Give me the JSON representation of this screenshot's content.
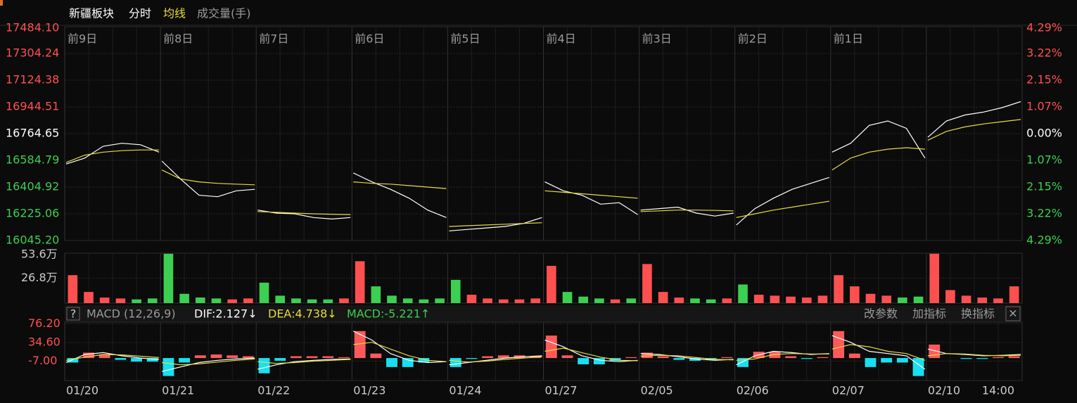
{
  "chart_data": [
    {
      "type": "line",
      "title": "新疆板块",
      "categories": [
        "01/20",
        "01/21",
        "01/22",
        "01/23",
        "01/24",
        "01/27",
        "02/05",
        "02/06",
        "02/07",
        "02/10"
      ],
      "session_labels": [
        "前9日",
        "前8日",
        "前7日",
        "前6日",
        "前5日",
        "前4日",
        "前3日",
        "前2日",
        "前1日",
        null
      ],
      "time_label": "14:00",
      "series": [
        {
          "name": "分时",
          "color": "#ffffff",
          "values": [
            [
              16560,
              16600,
              16680,
              16700,
              16690,
              16640
            ],
            [
              16580,
              16460,
              16350,
              16340,
              16380,
              16390
            ],
            [
              16250,
              16230,
              16225,
              16200,
              16190,
              16200
            ],
            [
              16500,
              16440,
              16390,
              16330,
              16250,
              16200
            ],
            [
              16110,
              16120,
              16130,
              16140,
              16160,
              16200
            ],
            [
              16440,
              16380,
              16350,
              16290,
              16300,
              16220
            ],
            [
              16250,
              16260,
              16270,
              16230,
              16210,
              16230
            ],
            [
              16150,
              16260,
              16330,
              16390,
              16430,
              16470
            ],
            [
              16640,
              16700,
              16820,
              16850,
              16800,
              16600
            ],
            [
              16740,
              16850,
              16890,
              16910,
              16940,
              16980
            ]
          ]
        },
        {
          "name": "均线",
          "color": "#e6dc3c",
          "values": [
            [
              16570,
              16620,
              16640,
              16650,
              16655,
              16655
            ],
            [
              16520,
              16460,
              16440,
              16430,
              16425,
              16420
            ],
            [
              16240,
              16235,
              16230,
              16225,
              16222,
              16220
            ],
            [
              16440,
              16430,
              16425,
              16415,
              16405,
              16395
            ],
            [
              16140,
              16145,
              16150,
              16155,
              16160,
              16165
            ],
            [
              16380,
              16370,
              16360,
              16350,
              16340,
              16330
            ],
            [
              16240,
              16245,
              16250,
              16250,
              16248,
              16245
            ],
            [
              16200,
              16225,
              16250,
              16270,
              16290,
              16310
            ],
            [
              16520,
              16600,
              16640,
              16660,
              16670,
              16660
            ],
            [
              16720,
              16780,
              16810,
              16830,
              16845,
              16860
            ]
          ]
        }
      ],
      "ylim": [
        16045.2,
        17484.1
      ],
      "yticks": [
        {
          "value": 17484.1,
          "label": "17484.10"
        },
        {
          "value": 17304.24,
          "label": "17304.24"
        },
        {
          "value": 17124.38,
          "label": "17124.38"
        },
        {
          "value": 16944.51,
          "label": "16944.51"
        },
        {
          "value": 16764.65,
          "label": "16764.65"
        },
        {
          "value": 16584.79,
          "label": "16584.79"
        },
        {
          "value": 16404.92,
          "label": "16404.92"
        },
        {
          "value": 16225.06,
          "label": "16225.06"
        },
        {
          "value": 16045.2,
          "label": "16045.20"
        }
      ],
      "y2lim": [
        -4.29,
        4.29
      ],
      "y2ticks": [
        {
          "value": 4.29,
          "label": "4.29%"
        },
        {
          "value": 3.22,
          "label": "3.22%"
        },
        {
          "value": 2.15,
          "label": "2.15%"
        },
        {
          "value": 1.07,
          "label": "1.07%"
        },
        {
          "value": 0,
          "label": "0.00%"
        },
        {
          "value": -1.07,
          "label": "1.07%"
        },
        {
          "value": -2.15,
          "label": "2.15%"
        },
        {
          "value": -3.22,
          "label": "3.22%"
        },
        {
          "value": -4.29,
          "label": "4.29%"
        }
      ],
      "up_color": "#ff5050",
      "down_color": "#3ccf50",
      "flat_color": "#ffffff",
      "grid": true
    },
    {
      "type": "bar",
      "title": "成交量(手)",
      "values": [
        [
          30,
          12,
          6,
          5,
          4,
          5
        ],
        [
          53,
          10,
          6,
          5,
          4,
          5
        ],
        [
          22,
          8,
          5,
          4,
          4,
          5
        ],
        [
          45,
          18,
          8,
          5,
          4,
          5
        ],
        [
          25,
          9,
          5,
          4,
          4,
          5
        ],
        [
          40,
          12,
          7,
          5,
          4,
          5
        ],
        [
          42,
          12,
          6,
          5,
          4,
          5
        ],
        [
          20,
          9,
          8,
          7,
          6,
          8
        ],
        [
          30,
          18,
          10,
          8,
          6,
          7
        ],
        [
          53,
          14,
          8,
          6,
          5,
          18
        ]
      ],
      "ylim": [
        0,
        53.6
      ],
      "yticks": [
        {
          "value": 53.6,
          "label": "53.6万"
        },
        {
          "value": 26.8,
          "label": "26.8万"
        }
      ],
      "up_color": "#ff5050",
      "down_color": "#3ccf50"
    },
    {
      "type": "macd",
      "title": "MACD (12,26,9)",
      "help": "?",
      "buttons": [
        "改参数",
        "加指标",
        "换指标"
      ],
      "close": "×",
      "series": [
        {
          "name": "DIF:2.127↓",
          "color": "#ffffff",
          "values": [
            [
              -10,
              8,
              12,
              5,
              0,
              -3
            ],
            [
              -30,
              -20,
              -10,
              -5,
              -2,
              0
            ],
            [
              -25,
              -15,
              -8,
              -5,
              -3,
              -2
            ],
            [
              60,
              40,
              10,
              -5,
              -10,
              -8
            ],
            [
              -15,
              -10,
              -5,
              0,
              3,
              5
            ],
            [
              40,
              25,
              5,
              -5,
              -8,
              -5
            ],
            [
              10,
              8,
              3,
              -2,
              -5,
              -3
            ],
            [
              -15,
              5,
              15,
              12,
              8,
              10
            ],
            [
              50,
              35,
              15,
              10,
              5,
              -25
            ],
            [
              20,
              10,
              8,
              5,
              6,
              8
            ]
          ]
        },
        {
          "name": "DEA:4.738↓",
          "color": "#e6dc3c",
          "values": [
            [
              -5,
              2,
              8,
              7,
              4,
              1
            ],
            [
              -10,
              -15,
              -13,
              -9,
              -5,
              -2
            ],
            [
              -8,
              -12,
              -10,
              -7,
              -5,
              -3
            ],
            [
              30,
              35,
              20,
              5,
              -5,
              -8
            ],
            [
              -5,
              -9,
              -7,
              -3,
              0,
              3
            ],
            [
              15,
              22,
              12,
              2,
              -5,
              -6
            ],
            [
              4,
              6,
              5,
              1,
              -3,
              -4
            ],
            [
              -5,
              -2,
              8,
              10,
              9,
              9
            ],
            [
              20,
              30,
              25,
              15,
              10,
              -5
            ],
            [
              5,
              10,
              9,
              6,
              5,
              6
            ]
          ]
        },
        {
          "name": "MACD:-5.221↑",
          "color": "#3ccf50",
          "up_color": "#ff5a5a",
          "down_color": "#18e0f0",
          "values": [
            [
              -10,
              12,
              8,
              -4,
              -8,
              -8
            ],
            [
              -40,
              -10,
              6,
              8,
              6,
              4
            ],
            [
              -34,
              -6,
              4,
              4,
              4,
              2
            ],
            [
              60,
              10,
              -20,
              -20,
              -10,
              0
            ],
            [
              -20,
              -2,
              4,
              6,
              6,
              4
            ],
            [
              50,
              6,
              -14,
              -14,
              -6,
              2
            ],
            [
              12,
              4,
              -4,
              -6,
              -4,
              2
            ],
            [
              -20,
              14,
              14,
              4,
              -2,
              2
            ],
            [
              60,
              10,
              -20,
              -10,
              -10,
              -40
            ],
            [
              30,
              0,
              -2,
              -2,
              2,
              4
            ]
          ]
        }
      ],
      "ylim": [
        -50,
        80
      ],
      "yticks": [
        {
          "value": 76.2,
          "label": "76.20"
        },
        {
          "value": 34.6,
          "label": "34.60"
        },
        {
          "value": -7,
          "label": "-7.00"
        }
      ]
    }
  ]
}
